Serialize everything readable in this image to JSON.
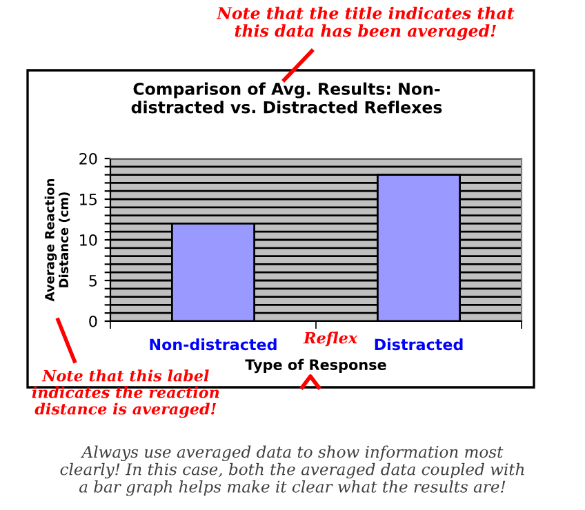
{
  "chart_data": {
    "type": "bar",
    "title": "Comparison of Avg. Results: Non-\ndistracted vs. Distracted Reflexes",
    "xlabel": "Type of Response",
    "ylabel": "Average Reaction\nDistance (cm)",
    "categories": [
      "Non-distracted",
      "Distracted"
    ],
    "series": [
      {
        "color": "#9999ff",
        "values": [
          12,
          18
        ]
      }
    ],
    "ylim": [
      0,
      20
    ],
    "yticks": [
      0,
      {
        "value": 1,
        "label": null
      },
      {
        "value": 2,
        "label": null
      },
      {
        "value": 3,
        "label": null
      },
      {
        "value": 4,
        "label": null
      },
      5,
      {
        "value": 6,
        "label": null
      },
      {
        "value": 7,
        "label": null
      },
      {
        "value": 8,
        "label": null
      },
      {
        "value": 9,
        "label": null
      },
      10,
      {
        "value": 11,
        "label": null
      },
      {
        "value": 12,
        "label": null
      },
      {
        "value": 13,
        "label": null
      },
      {
        "value": 14,
        "label": null
      },
      15,
      {
        "value": 16,
        "label": null
      },
      {
        "value": 17,
        "label": null
      },
      {
        "value": 18,
        "label": null
      },
      {
        "value": 19,
        "label": null
      },
      20
    ],
    "grid": "y",
    "annotations": [
      "Note that the title indicates that\nthis data has been averaged!",
      "Note that this label\nindicates the reaction\ndistance is averaged!",
      "Reflex",
      "Always use averaged data to show information most\nclearly! In this case, both the averaged data coupled with\na bar graph helps make it clear what the results are!"
    ]
  }
}
